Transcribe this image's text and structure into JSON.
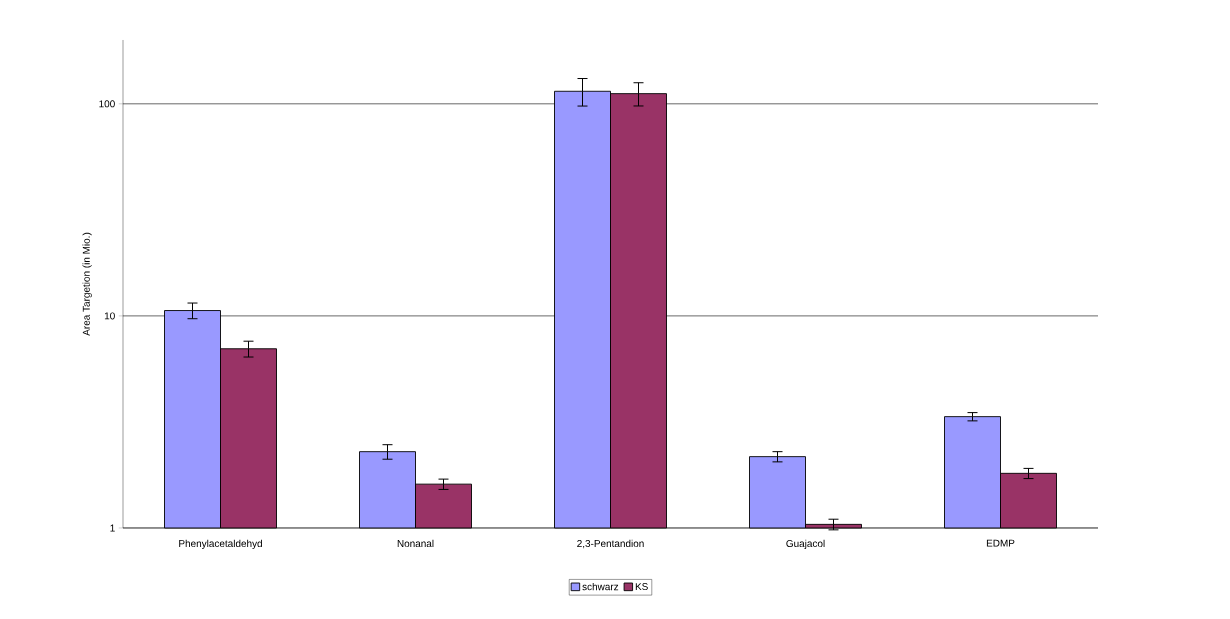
{
  "chart_data": {
    "type": "bar",
    "ylabel": "Area Targetion (in Mio.)",
    "categories": [
      "Phenylacetaldehyd",
      "Nonanal",
      "2,3-Pentandion",
      "Guajacol",
      "EDMP"
    ],
    "series": [
      {
        "name": "schwarz",
        "color": "#9999ff",
        "values": [
          10.6,
          2.29,
          114.6,
          2.17,
          3.35
        ],
        "errors": [
          0.9,
          0.18,
          17,
          0.12,
          0.15
        ]
      },
      {
        "name": "KS",
        "color": "#993366",
        "values": [
          7.0,
          1.61,
          111.7,
          1.04,
          1.81
        ],
        "errors": [
          0.6,
          0.09,
          14,
          0.06,
          0.1
        ]
      }
    ],
    "log": "y",
    "ylim": [
      1,
      200
    ],
    "yticks": [
      1,
      10,
      100
    ],
    "grid": "y",
    "legend": "bottom"
  }
}
